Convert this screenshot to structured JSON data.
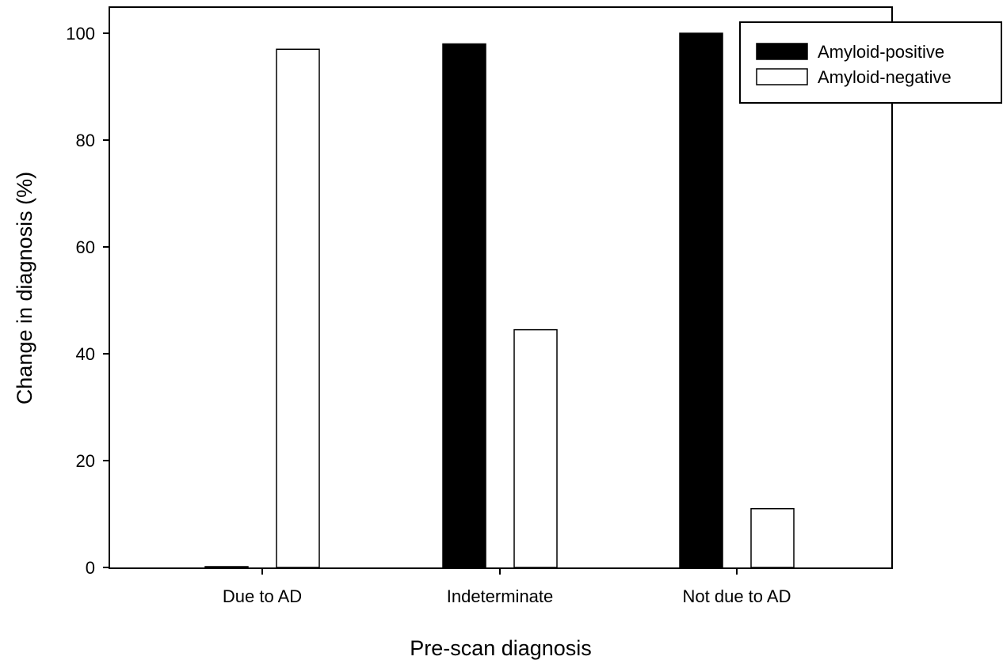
{
  "chart_data": {
    "type": "bar",
    "title": "",
    "xlabel": "Pre-scan diagnosis",
    "ylabel": "Change in diagnosis (%)",
    "ylim": [
      0,
      105
    ],
    "yticks": [
      "0",
      "20",
      "40",
      "60",
      "80",
      "100"
    ],
    "categories": [
      "Due to AD",
      "Indeterminate",
      "Not due to AD"
    ],
    "series": [
      {
        "name": "Amyloid-positive",
        "color": "#000000",
        "values": [
          0,
          98,
          100
        ]
      },
      {
        "name": "Amyloid-negative",
        "color": "#ffffff",
        "values": [
          97,
          44.5,
          11
        ]
      }
    ],
    "legend": "top-right",
    "grid": false
  }
}
